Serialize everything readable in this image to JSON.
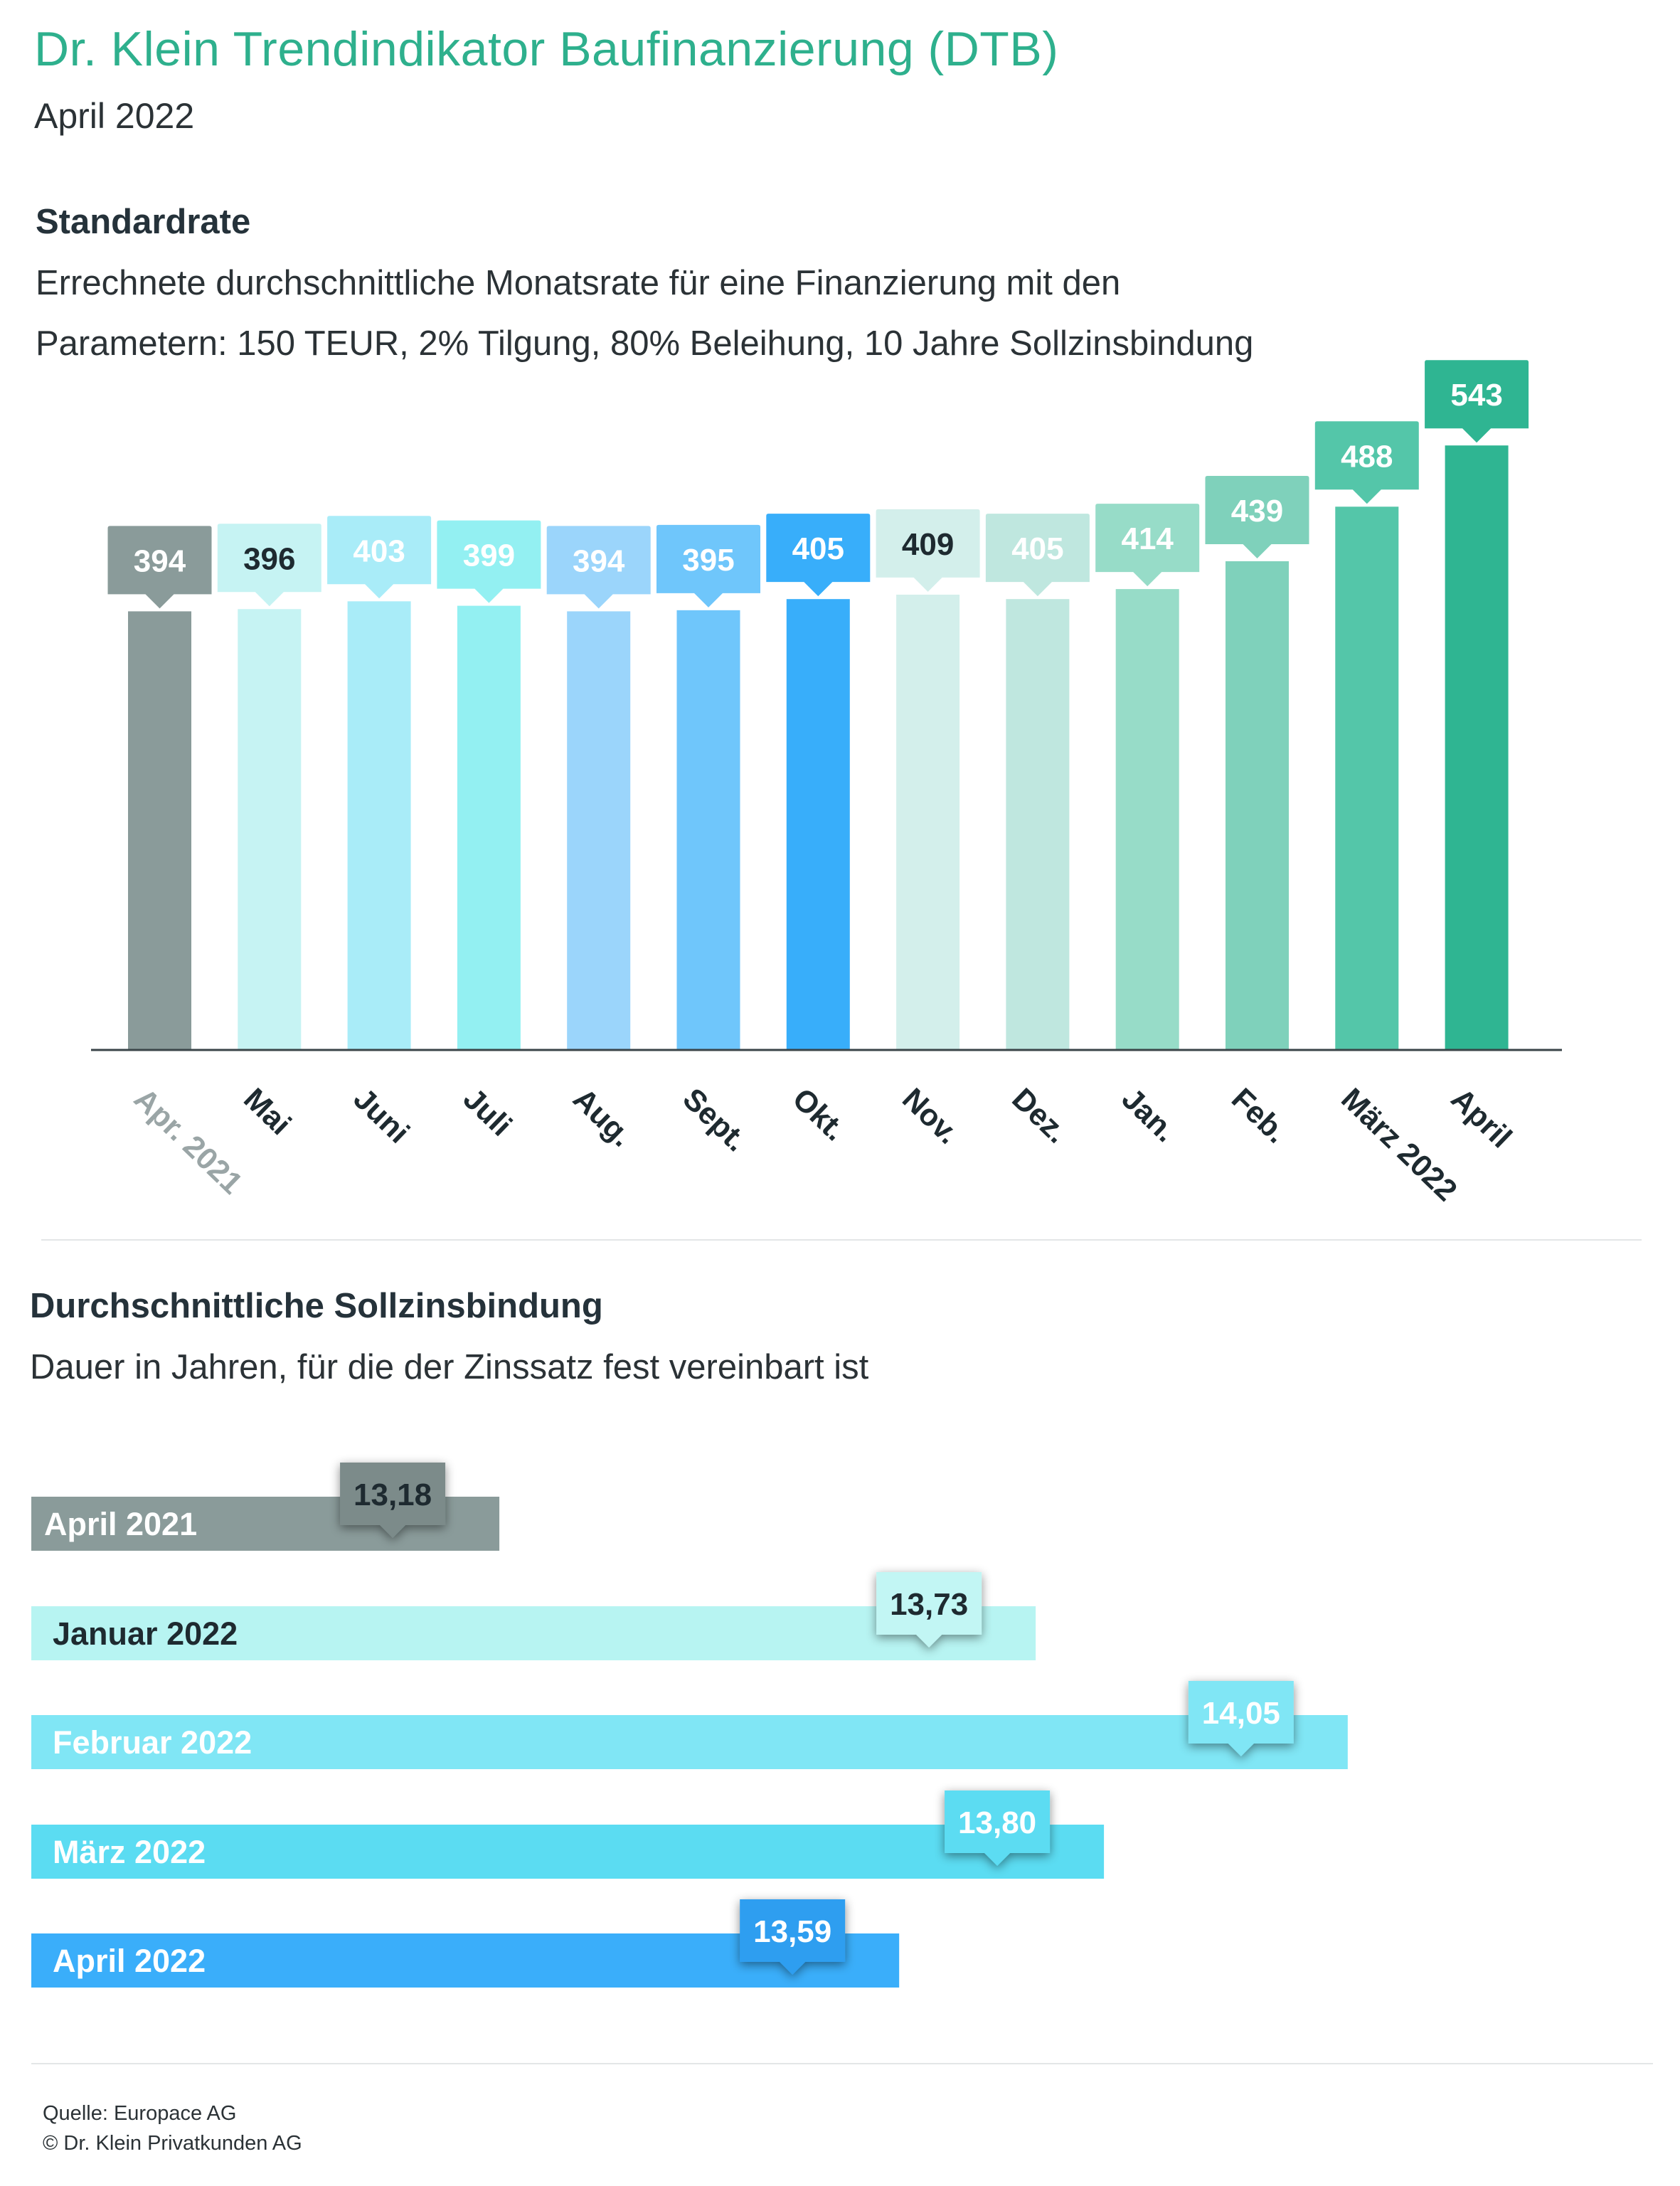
{
  "header": {
    "title": "Dr. Klein Trendindikator Baufinanzierung (DTB)",
    "subtitle": "April 2022"
  },
  "colors": {
    "title": "#2eb08d",
    "text": "#2b3236"
  },
  "standardrate": {
    "title": "Standardrate",
    "desc_line1": "Errechnete durchschnittliche Monatsrate für eine Finanzierung mit den",
    "desc_line2": "Parametern: 150 TEUR, 2% Tilgung, 80% Beleihung, 10 Jahre Sollzinsbindung"
  },
  "sollzins": {
    "title": "Durchschnittliche Sollzinsbindung",
    "desc": "Dauer in Jahren, für die der Zinssatz fest vereinbart ist"
  },
  "footer": {
    "source": "Quelle: Europace AG",
    "copyright": "© Dr. Klein Privatkunden AG"
  },
  "chart_data": [
    {
      "type": "bar",
      "categories": [
        "Apr. 2021",
        "Mai",
        "Juni",
        "Juli",
        "Aug.",
        "Sept.",
        "Okt.",
        "Nov.",
        "Dez.",
        "Jan.",
        "Feb.",
        "März 2022",
        "April"
      ],
      "values": [
        394,
        396,
        403,
        399,
        394,
        395,
        405,
        409,
        405,
        414,
        439,
        488,
        543
      ],
      "data_labels": [
        "394",
        "396",
        "403",
        "399",
        "394",
        "395",
        "405",
        "409",
        "405",
        "414",
        "439",
        "488",
        "543"
      ],
      "colors": [
        "#8a9b9a",
        "#c6f3f3",
        "#a9ecf8",
        "#93f0f2",
        "#9bd5fb",
        "#6fc6fb",
        "#38aefa",
        "#d3efeb",
        "#bfe7df",
        "#97dcc8",
        "#7fd1bb",
        "#54c6a9",
        "#2fb592"
      ],
      "label_box_colors": [
        "#8a9b9a",
        "#c6f3f3",
        "#a9ecf8",
        "#93f0f2",
        "#9bd5fb",
        "#6fc6fb",
        "#38aefa",
        "#d3efeb",
        "#bfe7df",
        "#97dcc8",
        "#7fd1bb",
        "#54c6a9",
        "#2fb592"
      ],
      "label_text_colors": [
        "#ffffff",
        "#1e2a30",
        "#ffffff",
        "#ffffff",
        "#ffffff",
        "#ffffff",
        "#ffffff",
        "#1e2a30",
        "#ffffff",
        "#ffffff",
        "#ffffff",
        "#ffffff",
        "#ffffff"
      ],
      "tick_colors": [
        "#9aa5a6",
        "#1e2a30",
        "#1e2a30",
        "#1e2a30",
        "#1e2a30",
        "#1e2a30",
        "#1e2a30",
        "#1e2a30",
        "#1e2a30",
        "#1e2a30",
        "#1e2a30",
        "#1e2a30",
        "#1e2a30"
      ],
      "ylim": [
        0,
        560
      ],
      "grid": false,
      "xlabel": "",
      "ylabel": ""
    },
    {
      "type": "bar",
      "orientation": "horizontal",
      "categories": [
        "April 2021",
        "Januar 2022",
        "Februar 2022",
        "März 2022",
        "April 2022"
      ],
      "values": [
        13.18,
        13.73,
        14.05,
        13.8,
        13.59
      ],
      "data_labels": [
        "13,18",
        "13,73",
        "14,05",
        "13,80",
        "13,59"
      ],
      "colors": [
        "#8a9b9a",
        "#b7f4f2",
        "#80e6f5",
        "#5bdcf2",
        "#3aaefa"
      ],
      "label_box_colors": [
        "#7b8b8a",
        "#c2f6f4",
        "#80e6f5",
        "#5bdcf2",
        "#2f9ef0"
      ],
      "label_text_colors": [
        "#1e2a30",
        "#1e2a30",
        "#ffffff",
        "#ffffff",
        "#ffffff"
      ],
      "category_text_colors": [
        "#ffffff",
        "#1e2a30",
        "#ffffff",
        "#ffffff",
        "#ffffff"
      ],
      "xlim": [
        12.7,
        14.2
      ],
      "grid": false
    }
  ]
}
